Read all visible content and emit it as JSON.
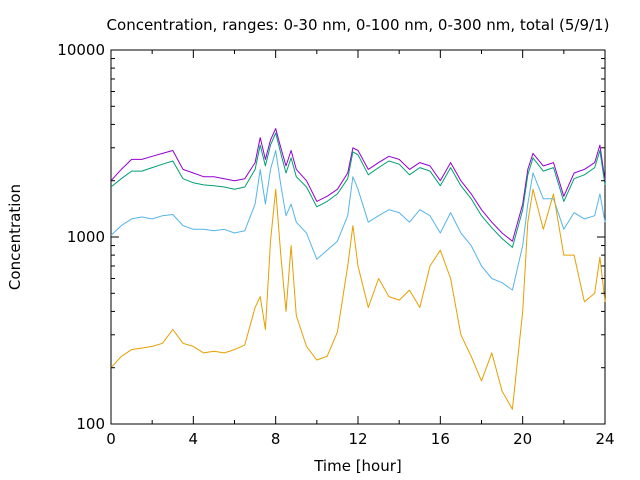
{
  "chart_data": {
    "type": "line",
    "title": "Concentration, ranges: 0-30 nm, 0-100 nm, 0-300 nm, total (5/9/1)",
    "xlabel": "Time [hour]",
    "ylabel": "Concentration",
    "xlim": [
      0,
      24
    ],
    "ylim": [
      100,
      10000
    ],
    "yscale": "log",
    "grid": false,
    "legend": "none",
    "x_ticks": [
      "0",
      "4",
      "8",
      "12",
      "16",
      "20",
      "24"
    ],
    "y_ticks": [
      "100",
      "1000",
      "10000"
    ],
    "x": [
      0,
      0.5,
      1,
      1.5,
      2,
      2.5,
      3,
      3.5,
      4,
      4.5,
      5,
      5.5,
      6,
      6.5,
      7,
      7.25,
      7.5,
      7.75,
      8,
      8.25,
      8.5,
      8.75,
      9,
      9.5,
      10,
      10.5,
      11,
      11.5,
      11.75,
      12,
      12.5,
      13,
      13.5,
      14,
      14.5,
      15,
      15.5,
      16,
      16.5,
      17,
      17.5,
      18,
      18.5,
      19,
      19.5,
      20,
      20.25,
      20.5,
      21,
      21.5,
      22,
      22.5,
      23,
      23.5,
      23.75,
      24
    ],
    "series": [
      {
        "color": "#9400d3",
        "values": [
          2000,
          2300,
          2600,
          2600,
          2700,
          2800,
          2900,
          2300,
          2200,
          2100,
          2100,
          2050,
          2000,
          2050,
          2500,
          3400,
          2600,
          3300,
          3800,
          3000,
          2400,
          2900,
          2300,
          2000,
          1550,
          1650,
          1800,
          2200,
          3000,
          2900,
          2300,
          2500,
          2700,
          2600,
          2300,
          2500,
          2400,
          2000,
          2500,
          2000,
          1700,
          1400,
          1200,
          1050,
          950,
          1500,
          2300,
          2800,
          2400,
          2500,
          1650,
          2200,
          2300,
          2500,
          3100,
          2000
        ]
      },
      {
        "color": "#009e73",
        "values": [
          1850,
          2050,
          2250,
          2250,
          2350,
          2450,
          2550,
          2050,
          1950,
          1900,
          1880,
          1850,
          1800,
          1850,
          2300,
          3100,
          2400,
          3100,
          3600,
          2800,
          2200,
          2650,
          2100,
          1850,
          1450,
          1550,
          1700,
          2050,
          2850,
          2750,
          2150,
          2350,
          2550,
          2450,
          2150,
          2350,
          2250,
          1880,
          2350,
          1880,
          1600,
          1300,
          1120,
          980,
          880,
          1400,
          2150,
          2650,
          2250,
          2350,
          1550,
          2050,
          2150,
          2350,
          2900,
          1900
        ]
      },
      {
        "color": "#56b4e9",
        "values": [
          1020,
          1150,
          1250,
          1280,
          1250,
          1300,
          1320,
          1150,
          1100,
          1100,
          1080,
          1100,
          1050,
          1080,
          1500,
          2300,
          1500,
          2300,
          2900,
          1900,
          1300,
          1500,
          1200,
          1050,
          760,
          850,
          950,
          1300,
          2100,
          1800,
          1200,
          1300,
          1400,
          1350,
          1200,
          1400,
          1300,
          1050,
          1350,
          1050,
          900,
          700,
          600,
          570,
          520,
          900,
          1500,
          2200,
          1600,
          1600,
          1100,
          1350,
          1250,
          1300,
          1700,
          1200
        ]
      },
      {
        "color": "#e69f00",
        "values": [
          200,
          230,
          250,
          255,
          260,
          270,
          320,
          270,
          260,
          240,
          245,
          240,
          250,
          265,
          420,
          480,
          320,
          950,
          1800,
          800,
          400,
          900,
          380,
          260,
          220,
          230,
          310,
          700,
          1150,
          700,
          420,
          600,
          480,
          460,
          520,
          420,
          700,
          850,
          600,
          300,
          230,
          170,
          240,
          150,
          120,
          400,
          1200,
          1800,
          1100,
          1700,
          800,
          800,
          450,
          500,
          780,
          450
        ]
      }
    ]
  }
}
